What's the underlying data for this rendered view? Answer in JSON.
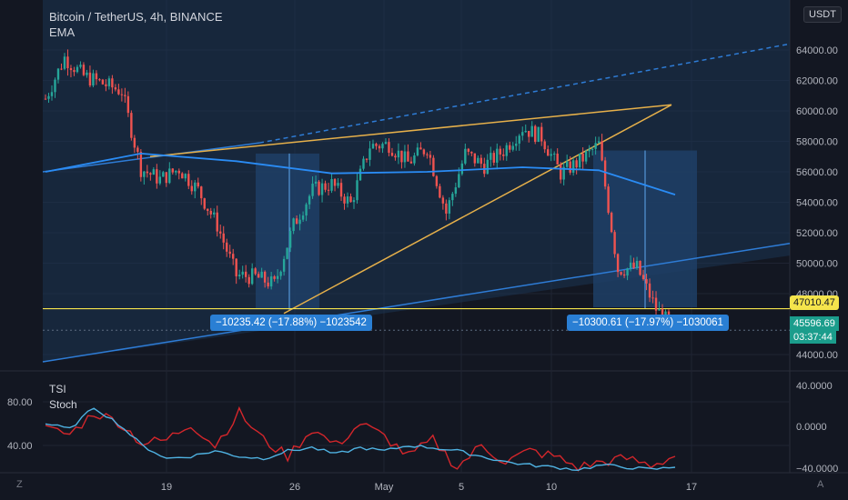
{
  "header": {
    "title": "Bitcoin / TetherUS, 4h, BINANCE",
    "indicator": "EMA",
    "currency": "USDT"
  },
  "colors": {
    "background": "#131722",
    "up_candle": "#26a69a",
    "down_candle": "#ef5350",
    "ema_line": "#2a8cf5",
    "wedge_lines": "#e6b04a",
    "channel_line": "#2e7cd6",
    "level_line": "#f5e44c",
    "zone_fill": "#1f3f66",
    "tsi_line": "#d4262b",
    "stoch_line": "#4fb2e2",
    "grid": "#1f2433",
    "badge_blue": "#2962ff",
    "badge_green": "#1b9d8c"
  },
  "price_axis": {
    "labels": [
      "64000.00",
      "62000.00",
      "60000.00",
      "58000.00",
      "56000.00",
      "54000.00",
      "52000.00",
      "50000.00",
      "48000.00",
      "44000.00"
    ],
    "level_label": "47010.47",
    "last_price": "45596.69",
    "countdown": "03:37:44"
  },
  "time_axis": {
    "labels": [
      "19",
      "26",
      "May",
      "5",
      "10",
      "17"
    ]
  },
  "measurements": [
    {
      "text": "−10235.42 (−17.88%) −1023542"
    },
    {
      "text": "−10300.61 (−17.97%) −1030061"
    }
  ],
  "oscillator": {
    "legend": [
      "TSI",
      "Stoch"
    ],
    "left_labels": [
      "80.00",
      "40.00"
    ],
    "right_labels": [
      "40.0000",
      "0.0000",
      "−40.0000"
    ]
  },
  "footer": {
    "left_button": "Z",
    "right_button": "A"
  },
  "chart_data": [
    {
      "type": "candlestick",
      "title": "Bitcoin / TetherUS, 4h, BINANCE",
      "ylim": [
        43500,
        65500
      ],
      "x_ticks": [
        "19",
        "26",
        "May",
        "5",
        "10",
        "17"
      ],
      "close_path": [
        {
          "date": "Apr 13",
          "close": 60800
        },
        {
          "date": "Apr 14",
          "close": 63500
        },
        {
          "date": "Apr 15",
          "close": 62300
        },
        {
          "date": "Apr 16",
          "close": 61800
        },
        {
          "date": "Apr 17",
          "close": 61300
        },
        {
          "date": "Apr 18",
          "close": 56200
        },
        {
          "date": "Apr 19",
          "close": 55500
        },
        {
          "date": "Apr 20",
          "close": 56200
        },
        {
          "date": "Apr 21",
          "close": 54800
        },
        {
          "date": "Apr 22",
          "close": 52500
        },
        {
          "date": "Apr 23",
          "close": 49200
        },
        {
          "date": "Apr 24",
          "close": 49100
        },
        {
          "date": "Apr 25",
          "close": 48600
        },
        {
          "date": "Apr 26",
          "close": 52500
        },
        {
          "date": "Apr 27",
          "close": 54800
        },
        {
          "date": "Apr 28",
          "close": 55200
        },
        {
          "date": "Apr 29",
          "close": 53900
        },
        {
          "date": "Apr 30",
          "close": 57700
        },
        {
          "date": "May 1",
          "close": 57800
        },
        {
          "date": "May 2",
          "close": 56600
        },
        {
          "date": "May 3",
          "close": 57600
        },
        {
          "date": "May 4",
          "close": 53300
        },
        {
          "date": "May 5",
          "close": 57200
        },
        {
          "date": "May 6",
          "close": 56400
        },
        {
          "date": "May 7",
          "close": 57400
        },
        {
          "date": "May 8",
          "close": 58900
        },
        {
          "date": "May 9",
          "close": 58300
        },
        {
          "date": "May 10",
          "close": 55900
        },
        {
          "date": "May 11",
          "close": 56700
        },
        {
          "date": "May 12",
          "close": 57800
        },
        {
          "date": "May 13",
          "close": 49600
        },
        {
          "date": "May 14",
          "close": 49700
        },
        {
          "date": "May 15",
          "close": 47000
        },
        {
          "date": "May 16",
          "close": 45600
        }
      ],
      "ema_path": [
        {
          "date": "Apr 13",
          "value": 56000
        },
        {
          "date": "Apr 18",
          "value": 57200
        },
        {
          "date": "Apr 23",
          "value": 56700
        },
        {
          "date": "Apr 28",
          "value": 55900
        },
        {
          "date": "May 3",
          "value": 56000
        },
        {
          "date": "May 8",
          "value": 56300
        },
        {
          "date": "May 12",
          "value": 56100
        },
        {
          "date": "May 16",
          "value": 54500
        }
      ],
      "horizontal_level": 47010.47,
      "last_price": 45596.69,
      "measurements": [
        {
          "change": -10235.42,
          "percent": -17.88
        },
        {
          "change": -10300.61,
          "percent": -17.97
        }
      ]
    },
    {
      "type": "line",
      "series": [
        {
          "name": "TSI",
          "values": [
            55,
            50,
            70,
            62,
            42,
            45,
            60,
            40,
            70,
            45,
            30,
            55,
            40,
            60,
            48,
            30,
            45,
            20,
            40,
            25,
            35,
            30,
            20,
            25,
            28,
            22,
            30
          ]
        },
        {
          "name": "Stoch",
          "values": [
            60,
            55,
            75,
            60,
            40,
            28,
            30,
            35,
            30,
            28,
            35,
            38,
            32,
            38,
            35,
            40,
            38,
            35,
            30,
            25,
            22,
            20,
            18,
            22,
            20,
            18,
            20
          ]
        }
      ],
      "ylim_left": [
        20,
        100
      ],
      "right_ticks": [
        40,
        0,
        -40
      ]
    }
  ]
}
